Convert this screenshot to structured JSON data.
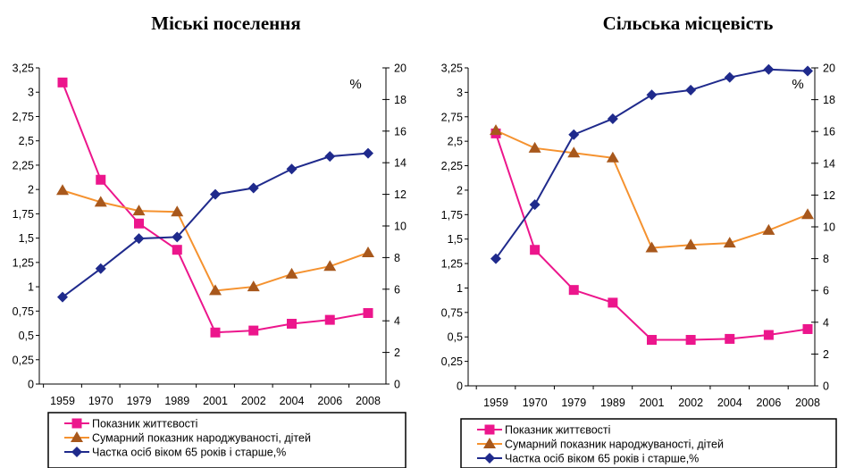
{
  "chart_data": [
    {
      "type": "line",
      "title": "Міські поселення",
      "categories": [
        "1959",
        "1970",
        "1979",
        "1989",
        "2001",
        "2002",
        "2004",
        "2006",
        "2008"
      ],
      "y_left_ticks": [
        "0",
        "0,25",
        "0,5",
        "0,75",
        "1",
        "1,25",
        "1,5",
        "1,75",
        "2",
        "2,25",
        "2,5",
        "2,75",
        "3",
        "3,25"
      ],
      "y_right_ticks": [
        "0",
        "2",
        "4",
        "6",
        "8",
        "10",
        "12",
        "14",
        "16",
        "18",
        "20"
      ],
      "y_right_unit": "%",
      "ylim_left": [
        0,
        3.25
      ],
      "ylim_right": [
        0,
        20
      ],
      "legend_position": "bottom",
      "series": [
        {
          "name": "Показник життєвості",
          "axis": "left",
          "marker": "square",
          "color": "#ec168c",
          "values": [
            3.1,
            2.1,
            1.65,
            1.38,
            0.53,
            0.55,
            0.62,
            0.66,
            0.73
          ]
        },
        {
          "name": "Сумарний показник народжуваності, дітей",
          "axis": "left",
          "marker": "triangle",
          "color": "#f5922f",
          "values": [
            1.99,
            1.87,
            1.78,
            1.77,
            0.96,
            1.0,
            1.13,
            1.21,
            1.35
          ]
        },
        {
          "name": "Частка осіб віком 65 років і старше,%",
          "axis": "right",
          "marker": "diamond",
          "color": "#1f2a8c",
          "values": [
            5.5,
            7.3,
            9.2,
            9.3,
            12.0,
            12.4,
            13.6,
            14.4,
            14.6
          ]
        }
      ]
    },
    {
      "type": "line",
      "title": "Сільська місцевість",
      "categories": [
        "1959",
        "1970",
        "1979",
        "1989",
        "2001",
        "2002",
        "2004",
        "2006",
        "2008"
      ],
      "y_left_ticks": [
        "0",
        "0,25",
        "0,5",
        "0,75",
        "1",
        "1,25",
        "1,5",
        "1,75",
        "2",
        "2,25",
        "2,5",
        "2,75",
        "3",
        "3,25"
      ],
      "y_right_ticks": [
        "0",
        "2",
        "4",
        "6",
        "8",
        "10",
        "12",
        "14",
        "16",
        "18",
        "20"
      ],
      "y_right_unit": "%",
      "ylim_left": [
        0,
        3.25
      ],
      "ylim_right": [
        0,
        20
      ],
      "legend_position": "bottom",
      "series": [
        {
          "name": "Показник життєвості",
          "axis": "left",
          "marker": "square",
          "color": "#ec168c",
          "values": [
            2.58,
            1.39,
            0.98,
            0.85,
            0.47,
            0.47,
            0.48,
            0.52,
            0.58
          ]
        },
        {
          "name": "Сумарний показник народжуваності, дітей",
          "axis": "left",
          "marker": "triangle",
          "color": "#f5922f",
          "values": [
            2.61,
            2.43,
            2.38,
            2.33,
            1.41,
            1.44,
            1.46,
            1.59,
            1.75
          ]
        },
        {
          "name": "Частка осіб віком 65 років і старше,%",
          "axis": "right",
          "marker": "diamond",
          "color": "#1f2a8c",
          "values": [
            8.0,
            11.4,
            15.8,
            16.8,
            18.3,
            18.6,
            19.4,
            19.9,
            19.8
          ]
        }
      ]
    }
  ]
}
